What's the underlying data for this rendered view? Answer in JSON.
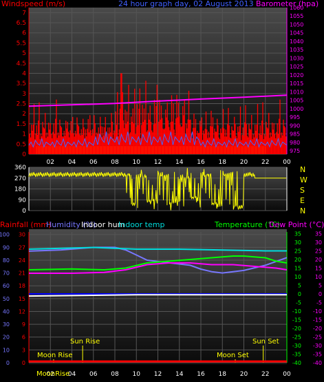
{
  "colors": {
    "wind_avg": "#ff0000",
    "wind_gust": "#4466ff",
    "wind_calm": "#ffff00",
    "barometer": "#ff00ff",
    "direction": "#ffff00",
    "rain": "#ff0000",
    "humidity": "#7777ff",
    "indoor_hum": "#ffffff",
    "indoor_temp": "#00dddd",
    "temperature": "#00ff00",
    "dew_point": "#ff00ff",
    "frost_line": "#0000ff",
    "solar": "#ffff00",
    "sun_moon": "#ffff00",
    "grid": "#555555",
    "panel_bg_top": "#4a4a4a",
    "panel_bg_bottom": "#0a0a0a"
  },
  "chart_data": [
    {
      "type": "line",
      "title": "24 hour graph day, 02 August 2013",
      "left_axis_label": "Windspeed (m/s)",
      "right_axis_label": "Barometer (hpa)",
      "x_ticks": [
        "02",
        "04",
        "06",
        "08",
        "10",
        "12",
        "14",
        "16",
        "18",
        "20",
        "22",
        "00"
      ],
      "x_range_hours": [
        0,
        24
      ],
      "left_ticks": [
        "0",
        "0.5",
        "1",
        "1.5",
        "2",
        "2.5",
        "3",
        "3.5",
        "4",
        "4.5",
        "5",
        "5.5",
        "6",
        "6.5",
        "7"
      ],
      "left_range": [
        0,
        7.25
      ],
      "right_ticks": [
        "975",
        "980",
        "985",
        "990",
        "995",
        "1000",
        "1005",
        "1010",
        "1015",
        "1020",
        "1025",
        "1030",
        "1035",
        "1040",
        "1045",
        "1050",
        "1055",
        "1060"
      ],
      "right_range": [
        973,
        1060
      ],
      "grid": true,
      "series": [
        {
          "name": "Barometer",
          "points": [
            [
              0,
              1001.5
            ],
            [
              4,
              1002.3
            ],
            [
              8,
              1003.1
            ],
            [
              12,
              1004.5
            ],
            [
              16,
              1005.7
            ],
            [
              20,
              1006.8
            ],
            [
              24,
              1008.0
            ]
          ]
        },
        {
          "name": "Wind average",
          "baseline": 0.5,
          "pattern": [
            0.9,
            1.2,
            0.6,
            1.4,
            0.8,
            1.0,
            1.8,
            0.7,
            1.1,
            1.5,
            0.6,
            1.3,
            2.0,
            0.9,
            1.2,
            0.7,
            1.6,
            1.0,
            0.8,
            1.4
          ],
          "peak": {
            "x": 8.6,
            "y": 4.0
          }
        },
        {
          "name": "Wind gust",
          "pattern": [
            0.3,
            0.5,
            0.2,
            0.6,
            0.4,
            0.3,
            0.7,
            0.2,
            0.5,
            0.4
          ]
        },
        {
          "name": "Calm level",
          "value": 0.4
        }
      ]
    },
    {
      "type": "scatter",
      "y_ticks": [
        "360",
        "270",
        "180",
        "90",
        "0"
      ],
      "right_labels": [
        "N",
        "W",
        "S",
        "E",
        "N"
      ],
      "y_range": [
        0,
        360
      ],
      "x_range_hours": [
        0,
        24
      ],
      "series": [
        {
          "name": "Wind direction",
          "segments": [
            [
              0,
              300
            ],
            [
              9,
              300
            ],
            [
              9.5,
              40
            ],
            [
              10,
              290
            ],
            [
              11,
              80
            ],
            [
              12,
              300
            ],
            [
              13,
              60
            ],
            [
              14,
              280
            ],
            [
              15,
              100
            ],
            [
              16,
              300
            ],
            [
              17,
              50
            ],
            [
              18,
              310
            ],
            [
              19,
              30
            ],
            [
              20,
              300
            ],
            [
              21,
              270
            ],
            [
              24,
              270
            ]
          ]
        }
      ]
    },
    {
      "type": "line",
      "legend": [
        "Rainfall (mm)",
        "Humidity (%)",
        "Indoor hum",
        "Indoor temp",
        "Temperature (°C)",
        "Dew Point (°C)"
      ],
      "x_ticks": [
        "02",
        "04",
        "06",
        "08",
        "10",
        "12",
        "14",
        "16",
        "18",
        "20",
        "22",
        "00"
      ],
      "x_range_hours": [
        0,
        24
      ],
      "left_rh_ticks": [
        "100",
        "90",
        "80",
        "70",
        "60",
        "50",
        "40",
        "30",
        "20",
        "10",
        "0"
      ],
      "left_rain_ticks": [
        "30",
        "27",
        "24",
        "21",
        "18",
        "15",
        "12",
        "9",
        "6",
        "3",
        "0"
      ],
      "right_temp_ticks": [
        "35",
        "30",
        "25",
        "20",
        "15",
        "10",
        "5",
        "0",
        "-5",
        "-10",
        "-15",
        "-20",
        "-25",
        "-30",
        "-35",
        "-40"
      ],
      "right_temp_ticks_2": [
        "35",
        "30",
        "25",
        "20",
        "15",
        "10",
        "5",
        "0",
        "-5",
        "-10",
        "-15",
        "-20",
        "-25",
        "-30",
        "-35",
        "-40"
      ],
      "temp_range": [
        -40,
        36
      ],
      "rh_range": [
        0,
        102
      ],
      "grid": true,
      "series": [
        {
          "name": "Humidity",
          "axis": "rh",
          "points": [
            [
              0,
              87
            ],
            [
              3,
              88
            ],
            [
              6,
              90
            ],
            [
              8,
              90
            ],
            [
              9,
              88
            ],
            [
              10,
              84
            ],
            [
              11,
              80
            ],
            [
              13,
              78
            ],
            [
              15,
              76
            ],
            [
              16,
              73
            ],
            [
              17,
              71
            ],
            [
              18,
              70
            ],
            [
              20,
              72
            ],
            [
              22,
              76
            ],
            [
              24,
              82
            ]
          ]
        },
        {
          "name": "Indoor temp",
          "axis": "temp",
          "points": [
            [
              0,
              26
            ],
            [
              6,
              27
            ],
            [
              10,
              26
            ],
            [
              14,
              26
            ],
            [
              18,
              25.5
            ],
            [
              22,
              25
            ],
            [
              24,
              25
            ]
          ]
        },
        {
          "name": "Temperature",
          "axis": "temp",
          "points": [
            [
              0,
              14
            ],
            [
              4,
              14.5
            ],
            [
              7,
              14
            ],
            [
              9,
              15
            ],
            [
              11,
              18
            ],
            [
              13,
              19
            ],
            [
              15,
              20
            ],
            [
              17,
              21
            ],
            [
              19,
              22
            ],
            [
              20,
              22
            ],
            [
              22,
              21
            ],
            [
              23,
              19
            ],
            [
              24,
              18
            ]
          ]
        },
        {
          "name": "Dew Point",
          "axis": "temp",
          "points": [
            [
              0,
              12
            ],
            [
              4,
              12
            ],
            [
              7,
              12.5
            ],
            [
              9,
              14
            ],
            [
              11,
              17
            ],
            [
              13,
              18
            ],
            [
              15,
              18
            ],
            [
              17,
              17
            ],
            [
              19,
              17
            ],
            [
              21,
              16
            ],
            [
              23,
              15
            ],
            [
              24,
              14
            ]
          ]
        },
        {
          "name": "Indoor hum",
          "axis": "rh",
          "points": [
            [
              0,
              52
            ],
            [
              10,
              53
            ],
            [
              14,
              53
            ],
            [
              24,
              53
            ]
          ]
        },
        {
          "name": "Rainfall",
          "axis": "rain",
          "points": [
            [
              0,
              0.3
            ],
            [
              24,
              0.3
            ]
          ]
        }
      ],
      "annotations": [
        {
          "text": "Moon Rise",
          "x_hours": 2.3
        },
        {
          "text": "Sun Rise",
          "x_hours": 5.0
        },
        {
          "text": "Moon Set",
          "x_hours": 19.2
        },
        {
          "text": "Sun Set",
          "x_hours": 21.8
        }
      ],
      "bottom_label": "MoonRise"
    }
  ]
}
